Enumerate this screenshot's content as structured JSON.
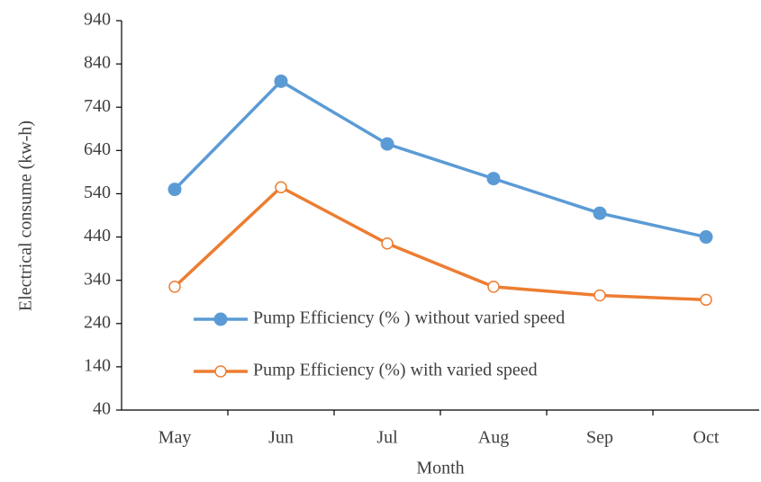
{
  "chart_data": {
    "type": "line",
    "x_label": "Month",
    "y_label": "Electrical consume (kw-h)",
    "categories": [
      "May",
      "Jun",
      "Jul",
      "Aug",
      "Sep",
      "Oct"
    ],
    "series": [
      {
        "name": "Pump Efficiency (% ) without varied speed",
        "color": "#5b9bd5",
        "marker": "filled",
        "values": [
          550,
          800,
          655,
          575,
          495,
          440
        ]
      },
      {
        "name": "Pump Efficiency (%) with varied speed",
        "color": "#ed7d31",
        "marker": "hollow",
        "values": [
          325,
          555,
          425,
          325,
          305,
          295
        ]
      }
    ],
    "ylim": [
      40,
      940
    ],
    "yticks": [
      40,
      140,
      240,
      340,
      440,
      540,
      640,
      740,
      840,
      940
    ],
    "grid": false
  }
}
